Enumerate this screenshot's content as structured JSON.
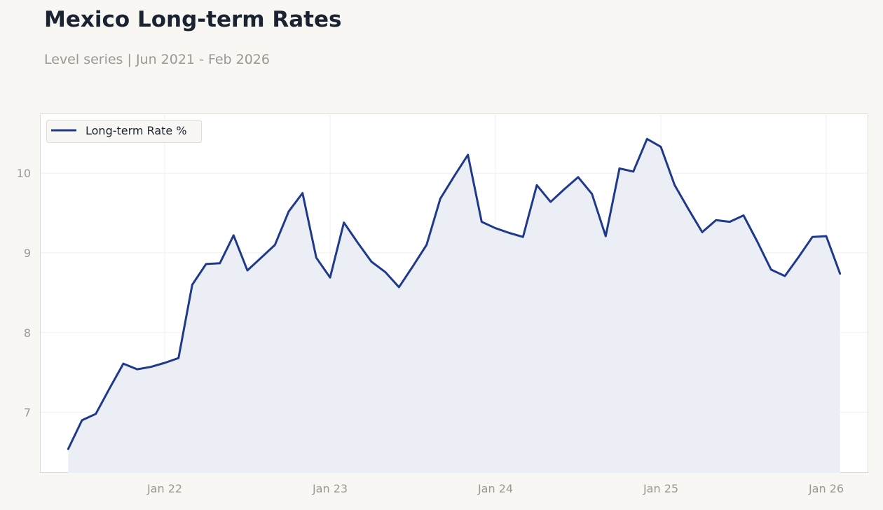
{
  "header": {
    "title": "Mexico Long-term Rates",
    "subtitle": "Level series | Jun 2021 - Feb 2026"
  },
  "colors": {
    "line": "#1f3a8a",
    "fill": "#eceef5",
    "grid": "#efefef",
    "frame": "#dedcd7",
    "background": "#f8f7f4"
  },
  "chart_data": {
    "type": "area",
    "title": "Mexico Long-term Rates",
    "subtitle": "Level series | Jun 2021 - Feb 2026",
    "xlabel": "",
    "ylabel": "",
    "series": [
      {
        "name": "Long-term Rate %",
        "x": [
          "2021-06",
          "2021-07",
          "2021-08",
          "2021-09",
          "2021-10",
          "2021-11",
          "2021-12",
          "2022-01",
          "2022-02",
          "2022-03",
          "2022-04",
          "2022-05",
          "2022-06",
          "2022-07",
          "2022-08",
          "2022-09",
          "2022-10",
          "2022-11",
          "2022-12",
          "2023-01",
          "2023-02",
          "2023-03",
          "2023-04",
          "2023-05",
          "2023-06",
          "2023-07",
          "2023-08",
          "2023-09",
          "2023-10",
          "2023-11",
          "2023-12",
          "2024-01",
          "2024-02",
          "2024-03",
          "2024-04",
          "2024-05",
          "2024-06",
          "2024-07",
          "2024-08",
          "2024-09",
          "2024-10",
          "2024-11",
          "2024-12",
          "2025-01",
          "2025-02",
          "2025-03",
          "2025-04",
          "2025-05",
          "2025-06",
          "2025-07",
          "2025-08",
          "2025-09",
          "2025-10",
          "2025-11",
          "2025-12",
          "2026-01",
          "2026-02"
        ],
        "values": [
          6.54,
          6.9,
          6.98,
          7.3,
          7.61,
          7.54,
          7.57,
          7.62,
          7.68,
          8.6,
          8.86,
          8.87,
          9.22,
          8.78,
          8.94,
          9.1,
          9.52,
          9.75,
          8.94,
          8.69,
          9.38,
          9.13,
          8.89,
          8.76,
          8.57,
          8.83,
          9.1,
          9.68,
          9.96,
          10.23,
          9.39,
          9.31,
          9.25,
          9.2,
          9.85,
          9.64,
          9.8,
          9.95,
          9.74,
          9.21,
          10.06,
          10.02,
          10.43,
          10.33,
          9.85,
          9.55,
          9.26,
          9.41,
          9.39,
          9.47,
          9.14,
          8.79,
          8.71,
          8.95,
          9.2,
          9.21,
          8.74
        ]
      }
    ],
    "x_ticks": [
      "Jan 22",
      "Jan 23",
      "Jan 24",
      "Jan 25",
      "Jan 26"
    ],
    "y_ticks": [
      7,
      8,
      9,
      10
    ],
    "ylim": [
      6.24,
      10.74
    ],
    "xlim": [
      "2021-04",
      "2026-04"
    ],
    "grid": true,
    "legend": "top-left"
  }
}
